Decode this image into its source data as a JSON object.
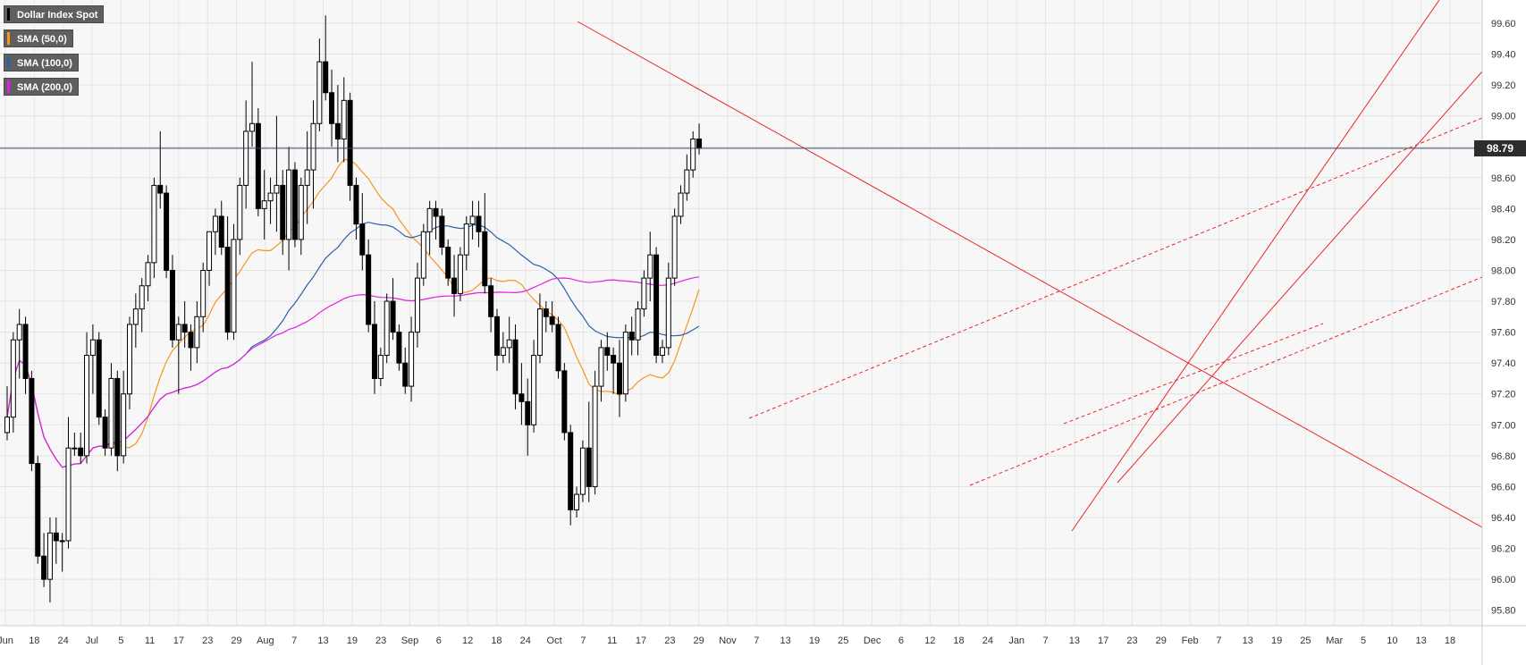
{
  "chart_data": {
    "type": "candlestick",
    "title": "Dollar Index Spot",
    "last_price": "98.79",
    "ylim": [
      95.7,
      99.75
    ],
    "y_ticks": [
      "99.60",
      "99.40",
      "99.20",
      "99.00",
      "98.80",
      "98.60",
      "98.40",
      "98.20",
      "98.00",
      "97.80",
      "97.60",
      "97.40",
      "97.20",
      "97.00",
      "96.80",
      "96.60",
      "96.40",
      "96.20",
      "96.00",
      "95.80"
    ],
    "x_ticks": [
      "Jun",
      "18",
      "24",
      "Jul",
      "5",
      "11",
      "17",
      "23",
      "29",
      "Aug",
      "7",
      "13",
      "19",
      "23",
      "Sep",
      "6",
      "12",
      "18",
      "24",
      "Oct",
      "7",
      "11",
      "17",
      "23",
      "29",
      "Nov",
      "7",
      "13",
      "19",
      "25",
      "Dec",
      "6",
      "12",
      "18",
      "24",
      "Jan",
      "7",
      "13",
      "17",
      "23",
      "29",
      "Feb",
      "7",
      "13",
      "19",
      "25",
      "Mar",
      "5",
      "10",
      "13",
      "18"
    ],
    "grid": true,
    "legend_position": "top-left",
    "legend": [
      {
        "label": "Dollar Index Spot",
        "color": "#000000"
      },
      {
        "label": "SMA (50,0)",
        "color": "#f7941d"
      },
      {
        "label": "SMA (100,0)",
        "color": "#2e5fa8"
      },
      {
        "label": "SMA (200,0)",
        "color": "#e020e0"
      }
    ],
    "series": [
      {
        "name": "Dollar Index Spot",
        "ohlc": [
          [
            96.95,
            97.25,
            96.9,
            97.05
          ],
          [
            97.05,
            97.6,
            96.95,
            97.55
          ],
          [
            97.55,
            97.75,
            97.3,
            97.65
          ],
          [
            97.65,
            97.7,
            97.2,
            97.3
          ],
          [
            97.3,
            97.35,
            96.7,
            96.75
          ],
          [
            96.75,
            96.8,
            96.1,
            96.15
          ],
          [
            96.15,
            96.3,
            95.95,
            96.0
          ],
          [
            96.0,
            96.4,
            95.85,
            96.3
          ],
          [
            96.3,
            96.4,
            96.1,
            96.25
          ],
          [
            96.25,
            96.3,
            96.05,
            96.25
          ],
          [
            96.25,
            97.05,
            96.2,
            96.85
          ],
          [
            96.85,
            96.95,
            96.8,
            96.85
          ],
          [
            96.85,
            96.95,
            96.75,
            96.8
          ],
          [
            96.8,
            97.6,
            96.75,
            97.45
          ],
          [
            97.45,
            97.65,
            97.2,
            97.55
          ],
          [
            97.55,
            97.6,
            97.0,
            97.05
          ],
          [
            97.05,
            97.1,
            96.8,
            96.85
          ],
          [
            96.85,
            97.4,
            96.8,
            97.3
          ],
          [
            97.3,
            97.35,
            96.7,
            96.8
          ],
          [
            96.8,
            97.35,
            96.75,
            97.2
          ],
          [
            97.2,
            97.7,
            97.1,
            97.65
          ],
          [
            97.65,
            97.85,
            97.5,
            97.75
          ],
          [
            97.75,
            97.95,
            97.6,
            97.9
          ],
          [
            97.9,
            98.1,
            97.8,
            98.05
          ],
          [
            98.05,
            98.6,
            97.95,
            98.55
          ],
          [
            98.55,
            98.9,
            98.4,
            98.5
          ],
          [
            98.5,
            98.55,
            97.95,
            98.0
          ],
          [
            98.0,
            98.1,
            97.5,
            97.55
          ],
          [
            97.55,
            97.7,
            97.2,
            97.65
          ],
          [
            97.65,
            97.8,
            97.5,
            97.6
          ],
          [
            97.6,
            97.65,
            97.35,
            97.5
          ],
          [
            97.5,
            97.8,
            97.4,
            97.7
          ],
          [
            97.7,
            98.05,
            97.6,
            98.0
          ],
          [
            98.0,
            98.25,
            97.9,
            98.25
          ],
          [
            98.25,
            98.4,
            98.1,
            98.35
          ],
          [
            98.35,
            98.45,
            98.1,
            98.15
          ],
          [
            98.15,
            98.35,
            97.55,
            97.6
          ],
          [
            97.6,
            98.3,
            97.55,
            98.2
          ],
          [
            98.2,
            98.6,
            98.1,
            98.55
          ],
          [
            98.55,
            99.1,
            98.4,
            98.9
          ],
          [
            98.9,
            99.35,
            98.8,
            98.95
          ],
          [
            98.95,
            99.05,
            98.35,
            98.4
          ],
          [
            98.4,
            98.65,
            98.2,
            98.45
          ],
          [
            98.45,
            98.6,
            98.3,
            98.5
          ],
          [
            98.5,
            99.0,
            98.25,
            98.55
          ],
          [
            98.55,
            98.65,
            98.1,
            98.2
          ],
          [
            98.2,
            98.8,
            98.0,
            98.65
          ],
          [
            98.65,
            98.7,
            98.15,
            98.2
          ],
          [
            98.2,
            98.6,
            98.1,
            98.55
          ],
          [
            98.55,
            98.9,
            98.3,
            98.65
          ],
          [
            98.65,
            99.1,
            98.4,
            98.95
          ],
          [
            98.95,
            99.5,
            98.9,
            99.35
          ],
          [
            99.35,
            99.65,
            99.1,
            99.15
          ],
          [
            99.15,
            99.3,
            98.8,
            98.95
          ],
          [
            98.95,
            99.2,
            98.7,
            98.85
          ],
          [
            98.85,
            99.25,
            98.7,
            99.1
          ],
          [
            99.1,
            99.15,
            98.45,
            98.55
          ],
          [
            98.55,
            98.6,
            98.2,
            98.3
          ],
          [
            98.3,
            98.5,
            98.0,
            98.1
          ],
          [
            98.1,
            98.2,
            97.6,
            97.65
          ],
          [
            97.65,
            97.8,
            97.2,
            97.3
          ],
          [
            97.3,
            97.5,
            97.25,
            97.45
          ],
          [
            97.45,
            97.85,
            97.4,
            97.8
          ],
          [
            97.8,
            97.95,
            97.55,
            97.6
          ],
          [
            97.6,
            97.65,
            97.35,
            97.4
          ],
          [
            97.4,
            97.5,
            97.2,
            97.25
          ],
          [
            97.25,
            97.7,
            97.15,
            97.6
          ],
          [
            97.6,
            98.05,
            97.5,
            97.95
          ],
          [
            97.95,
            98.3,
            97.9,
            98.25
          ],
          [
            98.25,
            98.45,
            98.1,
            98.4
          ],
          [
            98.4,
            98.45,
            98.2,
            98.35
          ],
          [
            98.35,
            98.4,
            98.1,
            98.15
          ],
          [
            98.15,
            98.2,
            97.9,
            97.95
          ],
          [
            97.95,
            98.1,
            97.7,
            97.85
          ],
          [
            97.85,
            98.15,
            97.8,
            98.1
          ],
          [
            98.1,
            98.35,
            98.0,
            98.3
          ],
          [
            98.3,
            98.45,
            98.2,
            98.35
          ],
          [
            98.35,
            98.45,
            98.15,
            98.25
          ],
          [
            98.25,
            98.5,
            97.85,
            97.9
          ],
          [
            97.9,
            97.95,
            97.6,
            97.7
          ],
          [
            97.7,
            97.75,
            97.35,
            97.45
          ],
          [
            97.45,
            97.6,
            97.4,
            97.5
          ],
          [
            97.5,
            97.7,
            97.4,
            97.55
          ],
          [
            97.55,
            97.65,
            97.1,
            97.2
          ],
          [
            97.2,
            97.4,
            97.0,
            97.15
          ],
          [
            97.15,
            97.3,
            96.8,
            97.0
          ],
          [
            97.0,
            97.55,
            96.95,
            97.45
          ],
          [
            97.45,
            97.85,
            97.4,
            97.75
          ],
          [
            97.75,
            97.8,
            97.6,
            97.7
          ],
          [
            97.7,
            97.8,
            97.6,
            97.65
          ],
          [
            97.65,
            97.7,
            97.3,
            97.35
          ],
          [
            97.35,
            97.4,
            96.9,
            96.95
          ],
          [
            96.95,
            97.0,
            96.35,
            96.45
          ],
          [
            96.45,
            96.6,
            96.4,
            96.55
          ],
          [
            96.55,
            96.9,
            96.5,
            96.85
          ],
          [
            96.85,
            97.15,
            96.5,
            96.6
          ],
          [
            96.6,
            97.35,
            96.55,
            97.25
          ],
          [
            97.25,
            97.55,
            97.15,
            97.5
          ],
          [
            97.5,
            97.6,
            97.35,
            97.45
          ],
          [
            97.45,
            97.5,
            97.2,
            97.4
          ],
          [
            97.4,
            97.55,
            97.05,
            97.2
          ],
          [
            97.2,
            97.65,
            97.15,
            97.6
          ],
          [
            97.6,
            97.7,
            97.45,
            97.55
          ],
          [
            97.55,
            97.8,
            97.45,
            97.75
          ],
          [
            97.75,
            98.0,
            97.7,
            97.95
          ],
          [
            97.95,
            98.25,
            97.8,
            98.1
          ],
          [
            98.1,
            98.15,
            97.4,
            97.45
          ],
          [
            97.45,
            97.55,
            97.4,
            97.5
          ],
          [
            97.5,
            98.05,
            97.45,
            97.95
          ],
          [
            97.95,
            98.4,
            97.9,
            98.35
          ],
          [
            98.35,
            98.55,
            98.3,
            98.5
          ],
          [
            98.5,
            98.75,
            98.45,
            98.65
          ],
          [
            98.65,
            98.9,
            98.6,
            98.85
          ],
          [
            98.85,
            98.95,
            98.75,
            98.79
          ]
        ]
      },
      {
        "name": "SMA (50,0)",
        "color": "#f7941d"
      },
      {
        "name": "SMA (100,0)",
        "color": "#2e5fa8"
      },
      {
        "name": "SMA (200,0)",
        "color": "#e020e0"
      }
    ]
  }
}
